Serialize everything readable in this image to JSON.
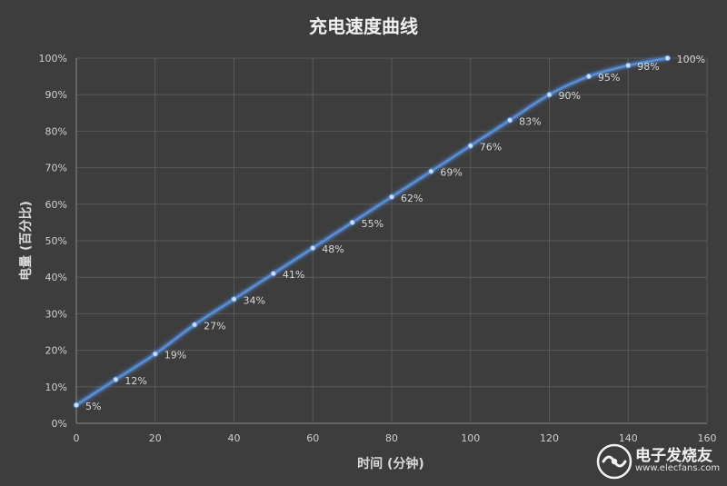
{
  "chart_data": {
    "type": "line",
    "title": "充电速度曲线",
    "xlabel": "时间 (分钟)",
    "ylabel": "电量 (百分比)",
    "xlim": [
      0,
      160
    ],
    "ylim": [
      0,
      100
    ],
    "x_ticks": [
      0,
      20,
      40,
      60,
      80,
      100,
      120,
      140,
      160
    ],
    "y_ticks": [
      "0%",
      "10%",
      "20%",
      "30%",
      "40%",
      "50%",
      "60%",
      "70%",
      "80%",
      "90%",
      "100%"
    ],
    "grid": true,
    "series": [
      {
        "x": [
          0,
          10,
          20,
          30,
          40,
          50,
          60,
          70,
          80,
          90,
          100,
          110,
          120,
          130,
          140,
          150
        ],
        "values": [
          5,
          12,
          19,
          27,
          34,
          41,
          48,
          55,
          62,
          69,
          76,
          83,
          90,
          95,
          98,
          100
        ],
        "labels": [
          "5%",
          "12%",
          "19%",
          "27%",
          "34%",
          "41%",
          "48%",
          "55%",
          "62%",
          "69%",
          "76%",
          "83%",
          "90%",
          "95%",
          "98%",
          "100%"
        ],
        "color": "#5b8fd4"
      }
    ]
  },
  "watermark": {
    "name": "电子发烧友",
    "url": "www.elecfans.com",
    "logo_icon": "elecfans-logo-icon"
  }
}
